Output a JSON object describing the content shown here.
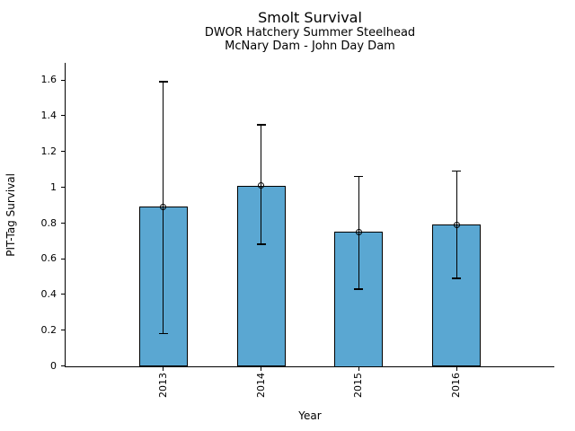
{
  "chart_data": {
    "type": "bar",
    "title": "Smolt Survival",
    "subtitle1": "DWOR Hatchery Summer Steelhead",
    "subtitle2": "McNary Dam - John Day Dam",
    "xlabel": "Year",
    "ylabel": "PIT-Tag Survival",
    "categories": [
      "2013",
      "2014",
      "2015",
      "2016"
    ],
    "values": [
      0.89,
      1.01,
      0.75,
      0.79
    ],
    "error_low": [
      0.18,
      0.68,
      0.43,
      0.49
    ],
    "error_high": [
      1.59,
      1.35,
      1.06,
      1.09
    ],
    "ylim": [
      0,
      1.65
    ],
    "yticks": [
      0,
      0.2,
      0.4,
      0.6,
      0.8,
      1,
      1.2,
      1.4,
      1.6
    ],
    "ytick_labels": [
      "0",
      "0.2",
      "0.4",
      "0.6",
      "0.8",
      "1",
      "1.2",
      "1.4",
      "1.6"
    ],
    "bar_color": "#5AA7D2",
    "bar_edge_color": "#000000",
    "error_color": "#000000",
    "marker": "open-circle-at-bar-top",
    "grid": false,
    "legend": false,
    "spines": [
      "left",
      "bottom"
    ]
  }
}
